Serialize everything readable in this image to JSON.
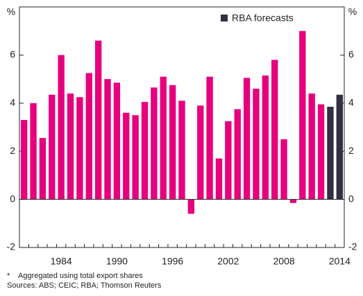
{
  "chart_data": {
    "type": "bar",
    "y_unit_label": "%",
    "categories": [
      null,
      null,
      null,
      null,
      "1984",
      null,
      null,
      null,
      null,
      null,
      "1990",
      null,
      null,
      null,
      null,
      null,
      "1996",
      null,
      null,
      null,
      null,
      null,
      "2002",
      null,
      null,
      null,
      null,
      null,
      "2008",
      null,
      null,
      null,
      null,
      null,
      "2014"
    ],
    "values": [
      3.3,
      4.0,
      2.55,
      4.35,
      6.0,
      4.4,
      4.25,
      5.25,
      6.6,
      5.0,
      4.85,
      3.6,
      3.5,
      4.05,
      4.65,
      5.1,
      4.75,
      4.1,
      -0.6,
      3.9,
      5.1,
      1.7,
      3.25,
      3.75,
      5.05,
      4.6,
      5.15,
      5.8,
      2.5,
      -0.15,
      7.0,
      4.4,
      3.95,
      3.85,
      4.35
    ],
    "colors": [
      "#e6007e",
      "#e6007e",
      "#e6007e",
      "#e6007e",
      "#e6007e",
      "#e6007e",
      "#e6007e",
      "#e6007e",
      "#e6007e",
      "#e6007e",
      "#e6007e",
      "#e6007e",
      "#e6007e",
      "#e6007e",
      "#e6007e",
      "#e6007e",
      "#e6007e",
      "#e6007e",
      "#e6007e",
      "#e6007e",
      "#e6007e",
      "#e6007e",
      "#e6007e",
      "#e6007e",
      "#e6007e",
      "#e6007e",
      "#e6007e",
      "#e6007e",
      "#e6007e",
      "#e6007e",
      "#e6007e",
      "#e6007e",
      "#e6007e",
      "#2f3040",
      "#2f3040"
    ],
    "legend": {
      "label": "RBA forecasts",
      "color": "#2f3040",
      "position": "upper right"
    },
    "ylim": [
      -2,
      8
    ],
    "yticks": [
      -2,
      0,
      2,
      4,
      6
    ],
    "grid": false,
    "footnote": {
      "marker": "*",
      "text": "Aggregated using total export shares"
    },
    "sources": "Sources: ABS; CEIC; RBA; Thomson Reuters"
  }
}
